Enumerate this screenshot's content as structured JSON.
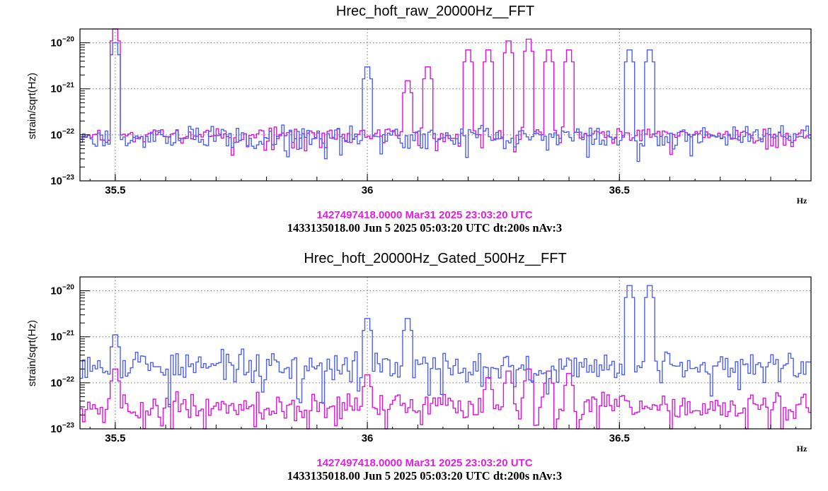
{
  "colors": {
    "ref": "#dd11dd",
    "cur": "#4d5ff0",
    "axis": "#000000",
    "grid": "#777777",
    "timestamp_ref": "#e020e0"
  },
  "chart_data": [
    {
      "type": "line",
      "title": "Hrec_hoft_raw_20000Hz__FFT",
      "ylabel": "strain/sqrt(Hz)",
      "xunit": "Hz",
      "xlim": [
        35.43,
        36.88
      ],
      "ylim": [
        1e-23,
        2e-20
      ],
      "yscale": "log",
      "grid": true,
      "xticks": [
        35.5,
        36,
        36.5
      ],
      "xtick_labels": [
        "35.5",
        "36",
        "36.5"
      ],
      "yticks": [
        {
          "value": 1e-20,
          "base": "10",
          "exp": "−20"
        },
        {
          "value": 1e-21,
          "base": "10",
          "exp": "−21"
        },
        {
          "value": 1e-22,
          "base": "10",
          "exp": "−22"
        },
        {
          "value": 1e-23,
          "base": "10",
          "exp": "−23"
        }
      ],
      "timestamp_ref": "1427497418.0000 Mar31 2025 23:03:20 UTC",
      "timestamp_cur": "1433135018.00 Jun 5 2025 05:03:20 UTC dt:200s nAv:3",
      "series": [
        {
          "color_key": "ref",
          "baseline": 1e-22,
          "noise": 0.12,
          "seed": 11,
          "peaks": [
            {
              "x": 35.5,
              "y": 2e-20
            },
            {
              "x": 36.08,
              "y": 1.5e-21
            },
            {
              "x": 36.12,
              "y": 3e-21
            },
            {
              "x": 36.2,
              "y": 7e-21
            },
            {
              "x": 36.24,
              "y": 7e-21
            },
            {
              "x": 36.28,
              "y": 1.1e-20
            },
            {
              "x": 36.32,
              "y": 1.2e-20
            },
            {
              "x": 36.36,
              "y": 7e-21
            },
            {
              "x": 36.4,
              "y": 7e-21
            }
          ]
        },
        {
          "color_key": "cur",
          "baseline": 9e-23,
          "noise": 0.18,
          "seed": 23,
          "peaks": [
            {
              "x": 35.5,
              "y": 1e-20
            },
            {
              "x": 36.0,
              "y": 3e-21
            },
            {
              "x": 36.52,
              "y": 7e-21
            },
            {
              "x": 36.56,
              "y": 7e-21
            }
          ]
        }
      ]
    },
    {
      "type": "line",
      "title": "Hrec_hoft_20000Hz_Gated_500Hz__FFT",
      "ylabel": "strain/sqrt(Hz)",
      "xunit": "Hz",
      "xlim": [
        35.43,
        36.88
      ],
      "ylim": [
        1e-23,
        2e-20
      ],
      "yscale": "log",
      "grid": true,
      "xticks": [
        35.5,
        36,
        36.5
      ],
      "xtick_labels": [
        "35.5",
        "36",
        "36.5"
      ],
      "yticks": [
        {
          "value": 1e-20,
          "base": "10",
          "exp": "−20"
        },
        {
          "value": 1e-21,
          "base": "10",
          "exp": "−21"
        },
        {
          "value": 1e-22,
          "base": "10",
          "exp": "−22"
        },
        {
          "value": 1e-23,
          "base": "10",
          "exp": "−23"
        }
      ],
      "timestamp_ref": "1427497418.0000 Mar31 2025 23:03:20 UTC",
      "timestamp_cur": "1433135018.00 Jun 5 2025 05:03:20 UTC dt:200s nAv:3",
      "series": [
        {
          "color_key": "ref",
          "baseline": 3e-23,
          "noise": 0.22,
          "seed": 37,
          "peaks": [
            {
              "x": 35.5,
              "y": 2e-22
            },
            {
              "x": 36.0,
              "y": 1.5e-22
            },
            {
              "x": 36.24,
              "y": 1.3e-22
            },
            {
              "x": 36.28,
              "y": 1.8e-22
            },
            {
              "x": 36.32,
              "y": 2e-22
            },
            {
              "x": 36.36,
              "y": 1.8e-22
            },
            {
              "x": 36.4,
              "y": 1.6e-22
            }
          ]
        },
        {
          "color_key": "cur",
          "baseline": 2.3e-22,
          "noise": 0.25,
          "seed": 53,
          "peaks": [
            {
              "x": 35.5,
              "y": 1.1e-21
            },
            {
              "x": 36.0,
              "y": 2.5e-21
            },
            {
              "x": 36.08,
              "y": 2.5e-21
            },
            {
              "x": 36.52,
              "y": 1.3e-20
            },
            {
              "x": 36.56,
              "y": 1.3e-20
            }
          ]
        }
      ]
    }
  ]
}
